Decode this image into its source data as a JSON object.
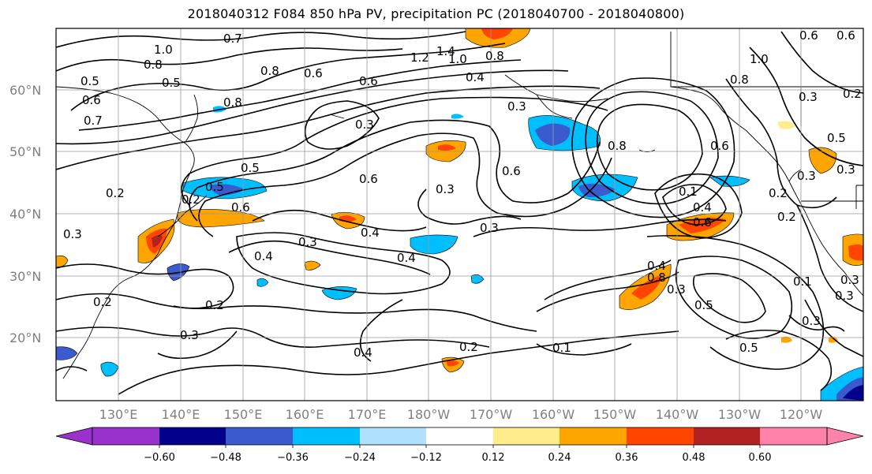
{
  "title": "2018040312 F084 850 hPa PV, precipitation PC (2018040700 - 2018040800)",
  "map": {
    "lat_labels": [
      "60°N",
      "50°N",
      "40°N",
      "30°N",
      "20°N"
    ],
    "lon_labels": [
      "130°E",
      "140°E",
      "150°E",
      "160°E",
      "170°E",
      "180°W",
      "170°W",
      "160°W",
      "150°W",
      "140°W",
      "130°W",
      "120°W"
    ],
    "extent": {
      "lon_min": 120,
      "lon_max": 250,
      "lat_min": 10,
      "lat_max": 70
    },
    "grid": true,
    "contour_labels": [
      "0.7",
      "1.0",
      "0.8",
      "0.5",
      "0.6",
      "0.7",
      "1.4",
      "1.2",
      "1.0",
      "0.8",
      "0.4",
      "0.3",
      "0.6",
      "0.6",
      "0.8",
      "0.5",
      "0.3",
      "1.0",
      "0.8",
      "0.6",
      "0.3",
      "0.2",
      "0.8",
      "0.2",
      "0.5",
      "0.6",
      "0.3",
      "0.6",
      "0.8",
      "0.1",
      "0.5",
      "0.6",
      "0.3",
      "0.6",
      "0.6",
      "0.3",
      "0.2",
      "0.3",
      "0.4",
      "0.3",
      "0.4",
      "0.4",
      "0.4",
      "0.3",
      "0.2",
      "0.2",
      "0.3",
      "0.2",
      "0.4",
      "0.8",
      "0.3",
      "0.4",
      "0.3",
      "0.6",
      "0.2",
      "0.1",
      "0.5",
      "0.5",
      "0.3",
      "0.2",
      "0.1",
      "0.5",
      "0.3"
    ]
  },
  "colorbar": {
    "ticks": [
      "−0.60",
      "−0.48",
      "−0.36",
      "−0.24",
      "−0.12",
      "0.12",
      "0.24",
      "0.36",
      "0.48",
      "0.60"
    ],
    "colors": [
      "#9932cc",
      "#00008b",
      "#3a5bcd",
      "#00bfff",
      "#b0e2ff",
      "#ffffff",
      "#ffec8b",
      "#ffa500",
      "#ff4500",
      "#b22222",
      "#ff82ab"
    ]
  }
}
